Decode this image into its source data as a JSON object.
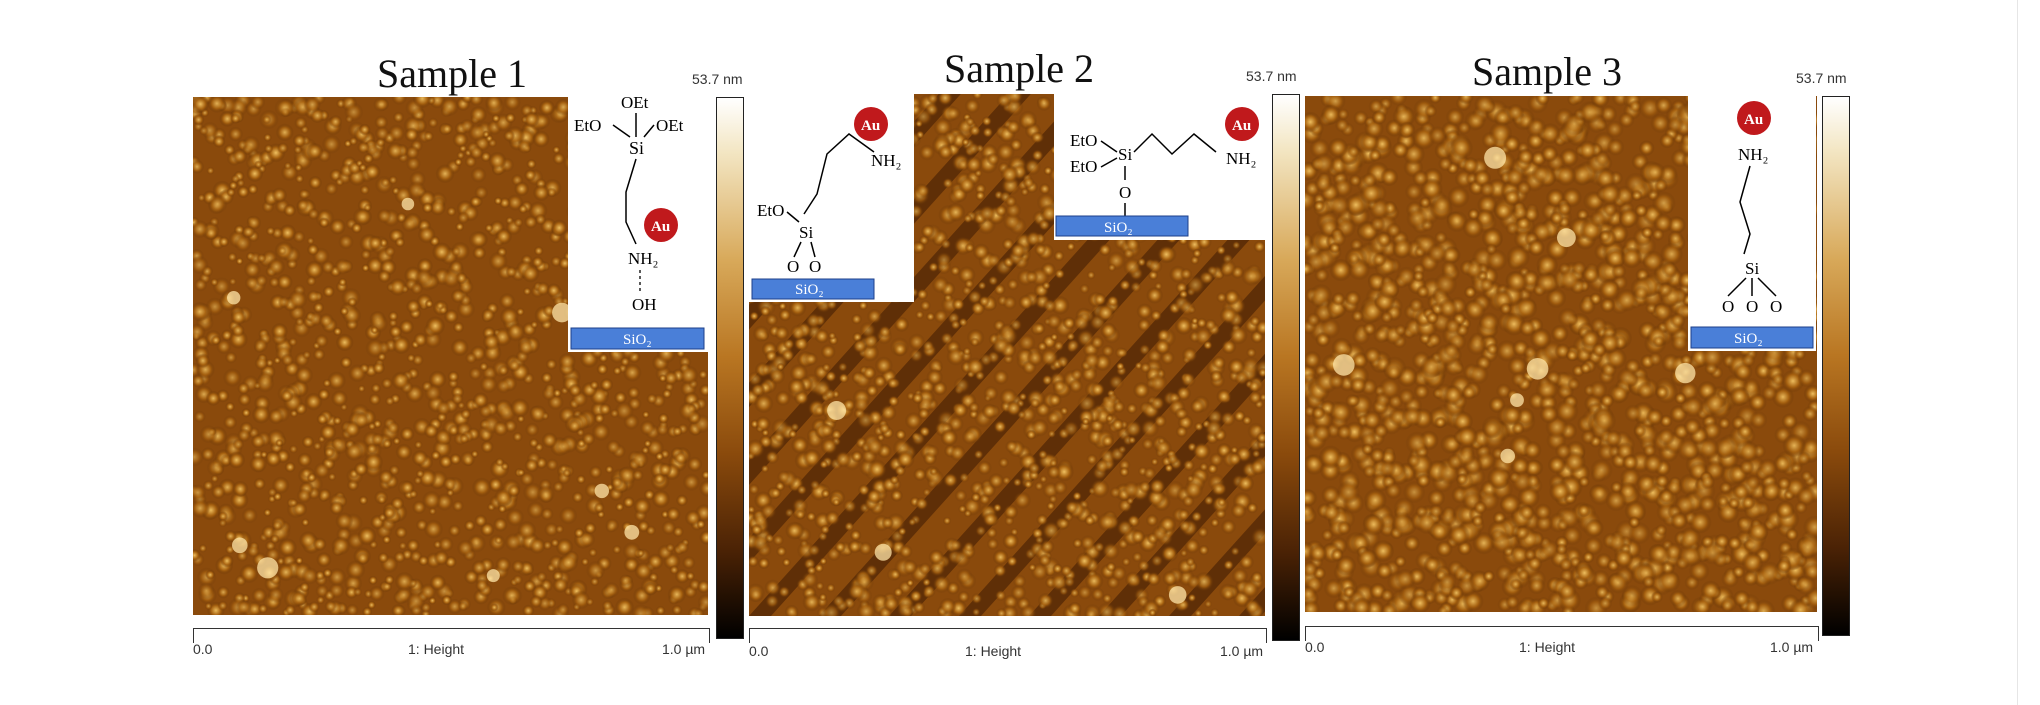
{
  "samples": [
    {
      "title": "Sample 1",
      "scale_max": "53.7 nm",
      "axis_start": "0.0",
      "axis_label": "1: Height",
      "axis_end": "1.0 µm",
      "inset": {
        "oet": "OEt",
        "eto_l": "EtO",
        "oet_r": "OEt",
        "si": "Si",
        "au": "Au",
        "nh2": "NH₂",
        "oh": "OH",
        "sio2": "SiO₂"
      }
    },
    {
      "title": "Sample 2",
      "scale_max": "53.7 nm",
      "axis_start": "0.0",
      "axis_label": "1: Height",
      "axis_end": "1.0 µm",
      "inset_left": {
        "eto": "EtO",
        "si": "Si",
        "o1": "O",
        "o2": "O",
        "au": "Au",
        "nh2": "NH₂",
        "sio2": "SiO₂"
      },
      "inset_right": {
        "eto1": "EtO",
        "eto2": "EtO",
        "si": "Si",
        "o": "O",
        "au": "Au",
        "nh2": "NH₂",
        "sio2": "SiO₂"
      }
    },
    {
      "title": "Sample 3",
      "scale_max": "53.7 nm",
      "axis_start": "0.0",
      "axis_label": "1: Height",
      "axis_end": "1.0 µm",
      "inset": {
        "au": "Au",
        "nh2": "NH₂",
        "si": "Si",
        "o1": "O",
        "o2": "O",
        "o3": "O",
        "sio2": "SiO₂"
      }
    }
  ],
  "colors": {
    "afm_low": "#5a2c05",
    "afm_mid": "#a8620f",
    "afm_high": "#f0c060",
    "au": "#c0191c",
    "sio2": "#4a7fd8"
  }
}
